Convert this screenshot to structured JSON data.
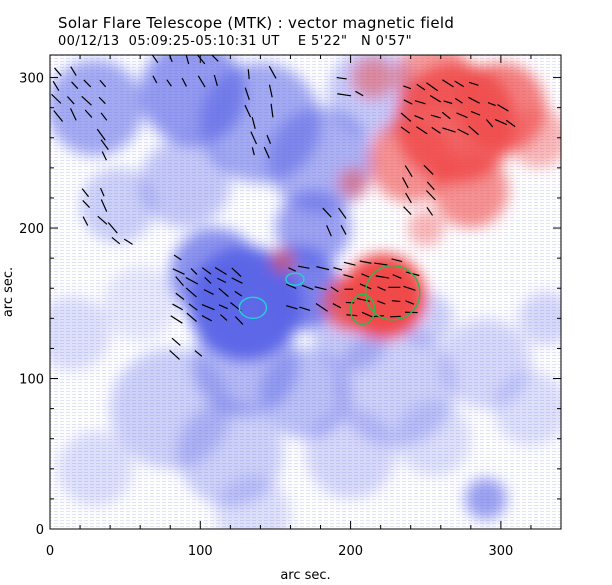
{
  "title": "Solar Flare Telescope (MTK) : vector magnetic field",
  "subtitle": {
    "date": "00/12/13",
    "time_range": "05:09:25-05:10:31 UT",
    "lon": "E 5'22\"",
    "lat": "N 0'57\""
  },
  "chart_data": {
    "type": "magnetogram",
    "xlabel": "arc sec.",
    "ylabel": "arc sec.",
    "xlim": [
      0,
      340
    ],
    "ylim": [
      0,
      315
    ],
    "x_ticks": [
      0,
      100,
      200,
      300
    ],
    "y_ticks": [
      0,
      100,
      200,
      300
    ],
    "colors": {
      "negative_polarity": "#5a64e6",
      "positive_polarity": "#f04a4a",
      "vectors": "#000000",
      "contour_cyan": "#22d3d3",
      "contour_green": "#2fb84a"
    },
    "negative_regions": [
      {
        "x": 30,
        "y": 280,
        "r": 32,
        "s": 0.55
      },
      {
        "x": 95,
        "y": 290,
        "r": 35,
        "s": 0.65
      },
      {
        "x": 140,
        "y": 270,
        "r": 40,
        "s": 0.55
      },
      {
        "x": 180,
        "y": 245,
        "r": 35,
        "s": 0.5
      },
      {
        "x": 215,
        "y": 290,
        "r": 30,
        "s": 0.35
      },
      {
        "x": 90,
        "y": 230,
        "r": 30,
        "s": 0.35
      },
      {
        "x": 45,
        "y": 215,
        "r": 25,
        "s": 0.3
      },
      {
        "x": 130,
        "y": 150,
        "r": 38,
        "s": 0.95
      },
      {
        "x": 165,
        "y": 160,
        "r": 28,
        "s": 0.8
      },
      {
        "x": 110,
        "y": 170,
        "r": 30,
        "s": 0.7
      },
      {
        "x": 175,
        "y": 200,
        "r": 25,
        "s": 0.6
      },
      {
        "x": 200,
        "y": 130,
        "r": 25,
        "s": 0.35
      },
      {
        "x": 130,
        "y": 110,
        "r": 35,
        "s": 0.45
      },
      {
        "x": 170,
        "y": 90,
        "r": 30,
        "s": 0.4
      },
      {
        "x": 230,
        "y": 95,
        "r": 40,
        "s": 0.3
      },
      {
        "x": 290,
        "y": 110,
        "r": 30,
        "s": 0.25
      },
      {
        "x": 80,
        "y": 80,
        "r": 40,
        "s": 0.3
      },
      {
        "x": 120,
        "y": 50,
        "r": 35,
        "s": 0.3
      },
      {
        "x": 200,
        "y": 50,
        "r": 30,
        "s": 0.25
      },
      {
        "x": 290,
        "y": 20,
        "r": 14,
        "s": 0.6
      },
      {
        "x": 255,
        "y": 60,
        "r": 25,
        "s": 0.2
      },
      {
        "x": 320,
        "y": 80,
        "r": 25,
        "s": 0.2
      },
      {
        "x": 15,
        "y": 130,
        "r": 25,
        "s": 0.2
      },
      {
        "x": 60,
        "y": 150,
        "r": 25,
        "s": 0.15
      },
      {
        "x": 250,
        "y": 140,
        "r": 18,
        "s": 0.3
      },
      {
        "x": 330,
        "y": 140,
        "r": 18,
        "s": 0.25
      },
      {
        "x": 30,
        "y": 40,
        "r": 25,
        "s": 0.2
      },
      {
        "x": 135,
        "y": 10,
        "r": 25,
        "s": 0.2
      }
    ],
    "positive_regions": [
      {
        "x": 270,
        "y": 270,
        "r": 40,
        "s": 0.85
      },
      {
        "x": 300,
        "y": 280,
        "r": 30,
        "s": 0.7
      },
      {
        "x": 240,
        "y": 245,
        "r": 28,
        "s": 0.6
      },
      {
        "x": 280,
        "y": 225,
        "r": 25,
        "s": 0.6
      },
      {
        "x": 255,
        "y": 300,
        "r": 25,
        "s": 0.55
      },
      {
        "x": 215,
        "y": 300,
        "r": 14,
        "s": 0.5
      },
      {
        "x": 325,
        "y": 260,
        "r": 20,
        "s": 0.4
      },
      {
        "x": 222,
        "y": 155,
        "r": 28,
        "s": 1.0
      },
      {
        "x": 200,
        "y": 150,
        "r": 18,
        "s": 0.8
      },
      {
        "x": 155,
        "y": 178,
        "r": 8,
        "s": 0.6
      },
      {
        "x": 202,
        "y": 230,
        "r": 10,
        "s": 0.5
      },
      {
        "x": 250,
        "y": 200,
        "r": 12,
        "s": 0.4
      }
    ],
    "vector_clusters": [
      {
        "x": 20,
        "y": 290,
        "w": 30,
        "h": 30,
        "n": 14,
        "angle": -55
      },
      {
        "x": 90,
        "y": 305,
        "w": 40,
        "h": 15,
        "n": 10,
        "angle": -60
      },
      {
        "x": 140,
        "y": 290,
        "w": 15,
        "h": 25,
        "n": 6,
        "angle": -70
      },
      {
        "x": 140,
        "y": 260,
        "w": 10,
        "h": 20,
        "n": 5,
        "angle": -70
      },
      {
        "x": 30,
        "y": 215,
        "w": 12,
        "h": 20,
        "n": 6,
        "angle": -55
      },
      {
        "x": 48,
        "y": 195,
        "w": 10,
        "h": 8,
        "n": 3,
        "angle": -45
      },
      {
        "x": 105,
        "y": 160,
        "w": 40,
        "h": 40,
        "n": 26,
        "angle": -35
      },
      {
        "x": 175,
        "y": 160,
        "w": 30,
        "h": 25,
        "n": 12,
        "angle": -20
      },
      {
        "x": 220,
        "y": 160,
        "w": 40,
        "h": 35,
        "n": 24,
        "angle": -10
      },
      {
        "x": 260,
        "y": 280,
        "w": 45,
        "h": 30,
        "n": 24,
        "angle": -30
      },
      {
        "x": 245,
        "y": 225,
        "w": 15,
        "h": 25,
        "n": 8,
        "angle": -50
      },
      {
        "x": 200,
        "y": 295,
        "w": 10,
        "h": 10,
        "n": 3,
        "angle": -20
      },
      {
        "x": 190,
        "y": 205,
        "w": 10,
        "h": 12,
        "n": 4,
        "angle": -60
      },
      {
        "x": 300,
        "y": 275,
        "w": 15,
        "h": 12,
        "n": 5,
        "angle": -35
      },
      {
        "x": 35,
        "y": 255,
        "w": 10,
        "h": 15,
        "n": 3,
        "angle": -60
      },
      {
        "x": 90,
        "y": 120,
        "w": 15,
        "h": 8,
        "n": 3,
        "angle": -40
      }
    ],
    "contours": [
      {
        "color_key": "contour_cyan",
        "cx": 135,
        "cy": 147,
        "rx": 9,
        "ry": 7
      },
      {
        "color_key": "contour_cyan",
        "cx": 163,
        "cy": 166,
        "rx": 6,
        "ry": 4
      },
      {
        "color_key": "contour_green",
        "cx": 228,
        "cy": 157,
        "rx": 18,
        "ry": 18
      },
      {
        "color_key": "contour_green",
        "cx": 208,
        "cy": 146,
        "rx": 8,
        "ry": 10
      }
    ]
  }
}
